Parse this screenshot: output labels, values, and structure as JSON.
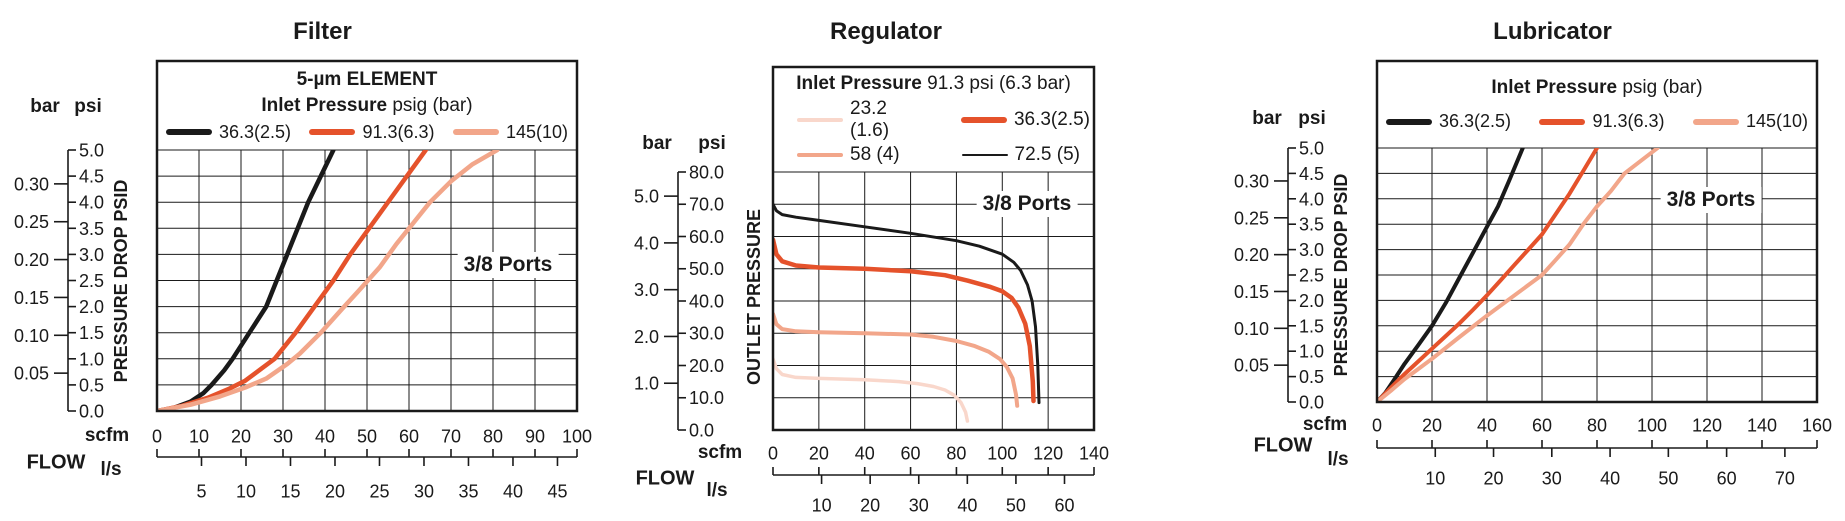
{
  "page": {
    "background": "#ffffff",
    "text_color": "#1a1a1a",
    "grid_color": "#1a1a1a"
  },
  "chart_data": [
    {
      "type": "line",
      "id": "filter",
      "title": "Filter",
      "ports_label": "3/8 Ports",
      "legend": {
        "heading": "5-µm ELEMENT",
        "sub_bold": "Inlet Pressure",
        "sub_rest": " psig (bar)"
      },
      "x_axis": {
        "label": "FLOW",
        "primary_unit": "scfm",
        "secondary_unit": "l/s",
        "primary_ticks": [
          0,
          10,
          20,
          30,
          40,
          50,
          60,
          70,
          80,
          90,
          100
        ],
        "secondary_ticks": [
          5,
          10,
          15,
          20,
          25,
          30,
          35,
          40,
          45
        ],
        "primary_range": [
          0,
          100
        ],
        "ls_to_scfm": 2.1189,
        "grid_step": 10
      },
      "y_axis": {
        "label": "PRESSURE DROP PSID",
        "left_unit": "bar",
        "right_unit": "psi",
        "psi_labels": [
          "5.0",
          "4.5",
          "4.0",
          "3.5",
          "3.0",
          "2.5",
          "2.0",
          "1.5",
          "1.0",
          "0.5",
          "0.0"
        ],
        "bar_labels": [
          "0.30",
          "0.25",
          "0.20",
          "0.15",
          "0.10",
          "0.05"
        ],
        "psi_range": [
          0,
          5
        ],
        "bar_to_psi": 14.5038,
        "grid_step": 0.5
      },
      "series": [
        {
          "label": "36.3(2.5)",
          "color": "#1a1a1a",
          "width": 4.5,
          "swatch_h": 6,
          "points": [
            [
              0,
              0
            ],
            [
              4,
              0.06
            ],
            [
              8,
              0.18
            ],
            [
              11,
              0.34
            ],
            [
              13,
              0.5
            ],
            [
              16,
              0.78
            ],
            [
              18,
              1
            ],
            [
              22,
              1.5
            ],
            [
              26,
              2
            ],
            [
              28.5,
              2.5
            ],
            [
              31,
              3
            ],
            [
              33.5,
              3.5
            ],
            [
              36,
              4
            ],
            [
              39,
              4.5
            ],
            [
              42,
              5
            ]
          ]
        },
        {
          "label": "91.3(6.3)",
          "color": "#e5522b",
          "width": 4.5,
          "swatch_h": 6,
          "points": [
            [
              0,
              0
            ],
            [
              6,
              0.1
            ],
            [
              12,
              0.25
            ],
            [
              17,
              0.42
            ],
            [
              21,
              0.58
            ],
            [
              25,
              0.82
            ],
            [
              28,
              1
            ],
            [
              33,
              1.5
            ],
            [
              37.5,
              2
            ],
            [
              42,
              2.5
            ],
            [
              46,
              3
            ],
            [
              50.5,
              3.5
            ],
            [
              55,
              4
            ],
            [
              59.5,
              4.5
            ],
            [
              64,
              5
            ]
          ]
        },
        {
          "label": "145(10)",
          "color": "#f2a68a",
          "width": 4.5,
          "swatch_h": 6,
          "points": [
            [
              0,
              0
            ],
            [
              8,
              0.12
            ],
            [
              15,
              0.28
            ],
            [
              21,
              0.45
            ],
            [
              26,
              0.62
            ],
            [
              31,
              0.9
            ],
            [
              34,
              1.1
            ],
            [
              39,
              1.5
            ],
            [
              44,
              1.95
            ],
            [
              48,
              2.3
            ],
            [
              53,
              2.75
            ],
            [
              57,
              3.2
            ],
            [
              61,
              3.6
            ],
            [
              65,
              4
            ],
            [
              70,
              4.4
            ],
            [
              75,
              4.72
            ],
            [
              81,
              5
            ]
          ]
        }
      ]
    },
    {
      "type": "line",
      "id": "regulator",
      "title": "Regulator",
      "ports_label": "3/8 Ports",
      "legend": {
        "sub_bold": "Inlet Pressure",
        "sub_rest": " 91.3 psi (6.3 bar)"
      },
      "x_axis": {
        "label": "FLOW",
        "primary_unit": "scfm",
        "secondary_unit": "l/s",
        "primary_ticks": [
          0,
          20,
          40,
          60,
          80,
          100,
          120,
          140
        ],
        "secondary_ticks": [
          10,
          20,
          30,
          40,
          50,
          60
        ],
        "primary_range": [
          0,
          140
        ],
        "ls_to_scfm": 2.1189,
        "grid_step": 20
      },
      "y_axis": {
        "label": "OUTLET PRESSURE",
        "left_unit": "bar",
        "right_unit": "psi",
        "psi_labels": [
          "80.0",
          "70.0",
          "60.0",
          "50.0",
          "40.0",
          "30.0",
          "20.0",
          "10.0",
          "0.0"
        ],
        "bar_labels": [
          "5.0",
          "4.0",
          "3.0",
          "2.0",
          "1.0"
        ],
        "psi_range": [
          0,
          80
        ],
        "bar_to_psi": 14.5038,
        "grid_step": 10
      },
      "series": [
        {
          "label": "23.2 (1.6)",
          "color": "#f9d7cb",
          "width": 3.5,
          "swatch_h": 4,
          "points": [
            [
              0,
              22
            ],
            [
              1.5,
              19
            ],
            [
              4,
              17.2
            ],
            [
              10,
              16.3
            ],
            [
              20,
              16
            ],
            [
              40,
              15.6
            ],
            [
              55,
              15
            ],
            [
              63,
              14.4
            ],
            [
              70,
              13.5
            ],
            [
              75,
              12.4
            ],
            [
              79,
              10.8
            ],
            [
              82,
              8.5
            ],
            [
              84,
              5.5
            ],
            [
              84.8,
              2.8
            ]
          ]
        },
        {
          "label": "36.3(2.5)",
          "color": "#e5522b",
          "width": 4.5,
          "swatch_h": 6,
          "points": [
            [
              0,
              59
            ],
            [
              1.5,
              54.5
            ],
            [
              4,
              52.3
            ],
            [
              10,
              51
            ],
            [
              20,
              50.4
            ],
            [
              40,
              50
            ],
            [
              60,
              49.2
            ],
            [
              75,
              48
            ],
            [
              85,
              46.3
            ],
            [
              95,
              44.3
            ],
            [
              100,
              43
            ],
            [
              104,
              41
            ],
            [
              107,
              38
            ],
            [
              110,
              33
            ],
            [
              112,
              26
            ],
            [
              113.3,
              15
            ],
            [
              113.6,
              9
            ]
          ]
        },
        {
          "label": "58 (4)",
          "color": "#f2a68a",
          "width": 4,
          "swatch_h": 4,
          "points": [
            [
              0,
              36
            ],
            [
              1.5,
              32.8
            ],
            [
              4,
              31.3
            ],
            [
              10,
              30.6
            ],
            [
              20,
              30.3
            ],
            [
              40,
              30
            ],
            [
              60,
              29.6
            ],
            [
              70,
              28.9
            ],
            [
              80,
              27.6
            ],
            [
              88,
              26
            ],
            [
              94,
              24.3
            ],
            [
              99,
              22
            ],
            [
              102,
              19.5
            ],
            [
              104.5,
              16
            ],
            [
              106,
              11
            ],
            [
              106.5,
              7.5
            ]
          ]
        },
        {
          "label": "72.5 (5)",
          "color": "#1a1a1a",
          "width": 3,
          "swatch_h": 2,
          "points": [
            [
              0,
              70
            ],
            [
              1.5,
              68
            ],
            [
              4,
              66.8
            ],
            [
              10,
              66
            ],
            [
              20,
              65
            ],
            [
              40,
              63
            ],
            [
              60,
              61
            ],
            [
              80,
              58.7
            ],
            [
              90,
              57
            ],
            [
              100,
              54.5
            ],
            [
              105,
              52
            ],
            [
              108,
              49.5
            ],
            [
              111,
              45
            ],
            [
              113,
              40
            ],
            [
              114.5,
              32
            ],
            [
              115.5,
              20
            ],
            [
              116,
              8.5
            ]
          ]
        }
      ]
    },
    {
      "type": "line",
      "id": "lubricator",
      "title": "Lubricator",
      "ports_label": "3/8 Ports",
      "legend": {
        "sub_bold": "Inlet Pressure",
        "sub_rest": " psig (bar)"
      },
      "x_axis": {
        "label": "FLOW",
        "primary_unit": "scfm",
        "secondary_unit": "l/s",
        "primary_ticks": [
          0,
          20,
          40,
          60,
          80,
          100,
          120,
          140,
          160
        ],
        "secondary_ticks": [
          10,
          20,
          30,
          40,
          50,
          60,
          70
        ],
        "primary_range": [
          0,
          160
        ],
        "ls_to_scfm": 2.1189,
        "grid_step": 20
      },
      "y_axis": {
        "label": "PRESSURE DROP PSID",
        "left_unit": "bar",
        "right_unit": "psi",
        "psi_labels": [
          "5.0",
          "4.5",
          "4.0",
          "3.5",
          "3.0",
          "2.5",
          "2.0",
          "1.5",
          "1.0",
          "0.5",
          "0.0"
        ],
        "bar_labels": [
          "0.30",
          "0.25",
          "0.20",
          "0.15",
          "0.10",
          "0.05"
        ],
        "psi_range": [
          0,
          5
        ],
        "bar_to_psi": 14.5038,
        "grid_step": 0.5
      },
      "series": [
        {
          "label": "36.3(2.5)",
          "color": "#1a1a1a",
          "width": 4,
          "swatch_h": 6,
          "points": [
            [
              0,
              0
            ],
            [
              3,
              0.18
            ],
            [
              6,
              0.42
            ],
            [
              10,
              0.75
            ],
            [
              15,
              1.12
            ],
            [
              20,
              1.5
            ],
            [
              25,
              1.95
            ],
            [
              30,
              2.45
            ],
            [
              35,
              2.95
            ],
            [
              40,
              3.45
            ],
            [
              44,
              3.85
            ],
            [
              48,
              4.35
            ],
            [
              53,
              5
            ]
          ]
        },
        {
          "label": "91.3(6.3)",
          "color": "#e5522b",
          "width": 4,
          "swatch_h": 6,
          "points": [
            [
              0,
              0
            ],
            [
              5,
              0.28
            ],
            [
              10,
              0.55
            ],
            [
              15,
              0.8
            ],
            [
              20,
              1.05
            ],
            [
              25,
              1.3
            ],
            [
              30,
              1.55
            ],
            [
              35,
              1.82
            ],
            [
              40,
              2.1
            ],
            [
              45,
              2.4
            ],
            [
              50,
              2.7
            ],
            [
              55,
              3
            ],
            [
              60,
              3.3
            ],
            [
              65,
              3.7
            ],
            [
              70,
              4.1
            ],
            [
              75,
              4.55
            ],
            [
              80,
              5
            ]
          ]
        },
        {
          "label": "145(10)",
          "color": "#f2a68a",
          "width": 4,
          "swatch_h": 6,
          "points": [
            [
              0,
              0
            ],
            [
              5,
              0.22
            ],
            [
              10,
              0.45
            ],
            [
              15,
              0.65
            ],
            [
              20,
              0.85
            ],
            [
              30,
              1.28
            ],
            [
              40,
              1.7
            ],
            [
              50,
              2.1
            ],
            [
              60,
              2.5
            ],
            [
              65,
              2.8
            ],
            [
              70,
              3.1
            ],
            [
              75,
              3.5
            ],
            [
              80,
              3.85
            ],
            [
              85,
              4.15
            ],
            [
              90,
              4.5
            ],
            [
              96,
              4.75
            ],
            [
              102,
              5
            ]
          ]
        }
      ]
    }
  ]
}
